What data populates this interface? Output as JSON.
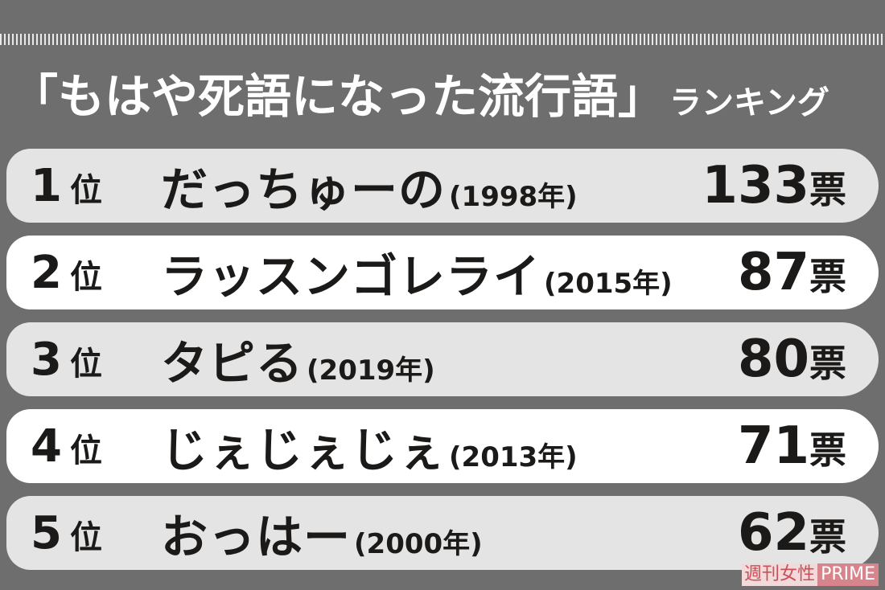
{
  "title": {
    "main": "「もはや死語になった流行語」",
    "sub": "ランキング"
  },
  "rank_unit": "位",
  "vote_unit": "票",
  "rows": [
    {
      "rank": "1",
      "word": "だっちゅーの",
      "year": "(1998年)",
      "votes": "133"
    },
    {
      "rank": "2",
      "word": "ラッスンゴレライ",
      "year": "(2015年)",
      "votes": "87"
    },
    {
      "rank": "3",
      "word": "タピる",
      "year": "(2019年)",
      "votes": "80"
    },
    {
      "rank": "4",
      "word": "じぇじぇじぇ",
      "year": "(2013年)",
      "votes": "71"
    },
    {
      "rank": "5",
      "word": "おっはー",
      "year": "(2000年)",
      "votes": "62"
    }
  ],
  "watermark": {
    "left": "週刊女性",
    "right": "PRIME"
  },
  "colors": {
    "background": "#6e6e6e",
    "row_odd": "#e4e4e4",
    "row_even": "#ffffff",
    "text": "#1c1a18"
  }
}
